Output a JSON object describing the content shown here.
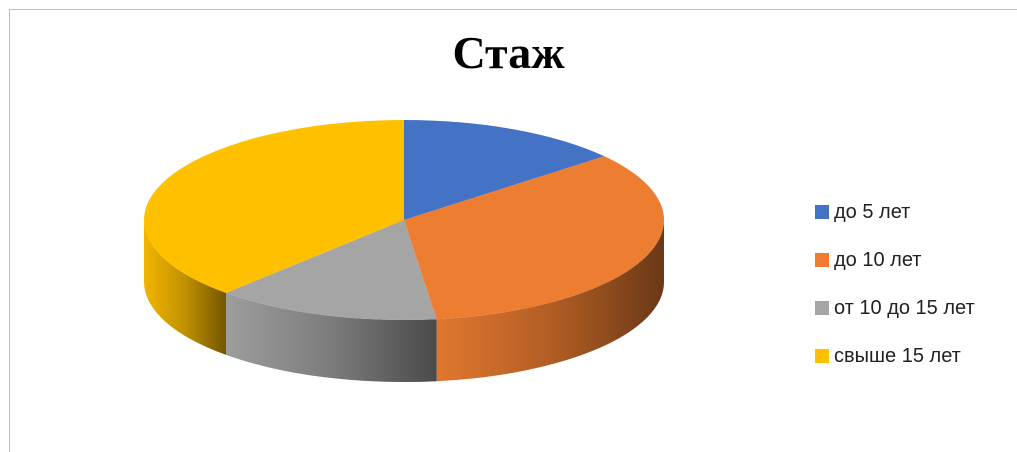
{
  "chart_data": {
    "type": "pie",
    "title": "Стаж",
    "categories": [
      "до 5 лет",
      "до 10 лет",
      "от 10 до 15 лет",
      "свыше 15 лет"
    ],
    "values": [
      14,
      34,
      14,
      38
    ],
    "colors": [
      "#4472c4",
      "#ed7d31",
      "#a5a5a5",
      "#ffc000"
    ],
    "legend_position": "right"
  }
}
